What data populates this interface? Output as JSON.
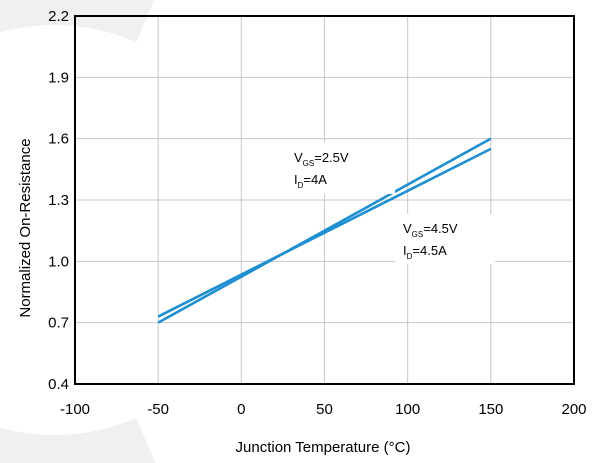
{
  "chart_data": {
    "type": "line",
    "xlabel": "Junction Temperature (°C)",
    "ylabel": "Normalized On-Resistance",
    "xlim": [
      -100,
      200
    ],
    "ylim": [
      0.4,
      2.2
    ],
    "x_ticks": [
      "-100",
      "-50",
      "0",
      "50",
      "100",
      "150",
      "200"
    ],
    "y_ticks": [
      "0.4",
      "0.7",
      "1.0",
      "1.3",
      "1.6",
      "1.9",
      "2.2"
    ],
    "grid": true,
    "line_color": "#1f8fd0",
    "series": [
      {
        "x": [
          -50,
          150
        ],
        "y": [
          0.7,
          1.6
        ]
      },
      {
        "x": [
          -50,
          150
        ],
        "y": [
          0.73,
          1.55
        ]
      }
    ],
    "annotations": [
      {
        "lines": [
          {
            "main": "V",
            "sub": "GS",
            "rest": "=2.5V"
          },
          {
            "main": "I",
            "sub": "D",
            "rest": "=4A"
          }
        ]
      },
      {
        "lines": [
          {
            "main": "V",
            "sub": "GS",
            "rest": "=4.5V"
          },
          {
            "main": "I",
            "sub": "D",
            "rest": "=4.5A"
          }
        ]
      }
    ]
  }
}
